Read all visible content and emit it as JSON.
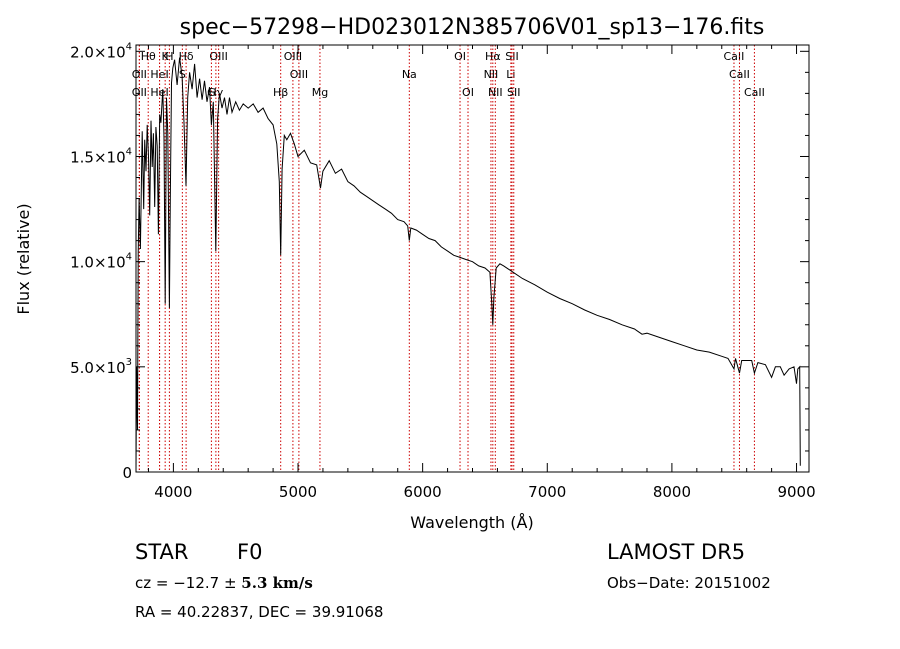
{
  "title": "spec−57298−HD023012N385706V01_sp13−176.fits",
  "footer": {
    "class_label": "STAR",
    "subclass": "F0",
    "survey": "LAMOST DR5",
    "cz_prefix": "cz = −12.7 ± ",
    "cz_value": "5.3 km/s",
    "obs_date": "Obs−Date: 20151002",
    "radec": "RA =  40.22837, DEC =  39.91068"
  },
  "chart_data": {
    "type": "line",
    "title": "spec−57298−HD023012N385706V01_sp13−176.fits",
    "xlabel": "Wavelength (Å)",
    "ylabel": "Flux (relative)",
    "xlim": [
      3700,
      9100
    ],
    "ylim": [
      0,
      20300
    ],
    "x_ticks": [
      "4000",
      "5000",
      "6000",
      "7000",
      "8000",
      "9000"
    ],
    "x_tick_values": [
      4000,
      5000,
      6000,
      7000,
      8000,
      9000
    ],
    "y_tick_values": [
      0,
      5000,
      10000,
      15000,
      20000
    ],
    "y_tick_labels": [
      {
        "mant": "0",
        "exp": ""
      },
      {
        "mant": "5.0×10",
        "exp": "3"
      },
      {
        "mant": "1.0×10",
        "exp": "4"
      },
      {
        "mant": "1.5×10",
        "exp": "4"
      },
      {
        "mant": "2.0×10",
        "exp": "4"
      }
    ],
    "series": [
      {
        "values": [
          [
            3700,
            0
          ],
          [
            3705,
            5000
          ],
          [
            3712,
            2000
          ],
          [
            3718,
            10400
          ],
          [
            3725,
            13000
          ],
          [
            3735,
            10600
          ],
          [
            3750,
            16200
          ],
          [
            3762,
            12500
          ],
          [
            3770,
            15800
          ],
          [
            3780,
            14300
          ],
          [
            3790,
            16500
          ],
          [
            3800,
            15000
          ],
          [
            3810,
            12200
          ],
          [
            3820,
            16700
          ],
          [
            3830,
            14500
          ],
          [
            3840,
            16100
          ],
          [
            3850,
            12600
          ],
          [
            3860,
            16400
          ],
          [
            3870,
            15500
          ],
          [
            3880,
            11300
          ],
          [
            3890,
            17000
          ],
          [
            3900,
            16600
          ],
          [
            3915,
            18200
          ],
          [
            3925,
            15900
          ],
          [
            3934,
            8000
          ],
          [
            3945,
            17800
          ],
          [
            3955,
            16100
          ],
          [
            3968,
            7800
          ],
          [
            3975,
            13000
          ],
          [
            3985,
            18500
          ],
          [
            3995,
            19200
          ],
          [
            4010,
            19600
          ],
          [
            4030,
            18400
          ],
          [
            4050,
            19700
          ],
          [
            4070,
            18800
          ],
          [
            4085,
            16600
          ],
          [
            4101,
            13600
          ],
          [
            4115,
            17800
          ],
          [
            4130,
            19000
          ],
          [
            4150,
            18200
          ],
          [
            4170,
            19400
          ],
          [
            4190,
            17800
          ],
          [
            4210,
            18700
          ],
          [
            4230,
            17700
          ],
          [
            4250,
            18600
          ],
          [
            4270,
            17600
          ],
          [
            4290,
            18300
          ],
          [
            4305,
            16500
          ],
          [
            4320,
            17600
          ],
          [
            4340,
            10500
          ],
          [
            4355,
            16800
          ],
          [
            4370,
            18000
          ],
          [
            4390,
            17300
          ],
          [
            4410,
            17800
          ],
          [
            4430,
            17000
          ],
          [
            4450,
            17800
          ],
          [
            4470,
            17100
          ],
          [
            4500,
            17600
          ],
          [
            4530,
            17200
          ],
          [
            4560,
            17500
          ],
          [
            4600,
            17300
          ],
          [
            4640,
            17500
          ],
          [
            4680,
            17100
          ],
          [
            4720,
            17300
          ],
          [
            4760,
            16800
          ],
          [
            4800,
            16500
          ],
          [
            4830,
            15600
          ],
          [
            4850,
            13800
          ],
          [
            4861,
            10300
          ],
          [
            4872,
            14400
          ],
          [
            4890,
            16000
          ],
          [
            4910,
            15800
          ],
          [
            4940,
            16100
          ],
          [
            4970,
            15600
          ],
          [
            5000,
            15000
          ],
          [
            5050,
            15300
          ],
          [
            5100,
            14700
          ],
          [
            5150,
            14600
          ],
          [
            5180,
            13500
          ],
          [
            5200,
            14300
          ],
          [
            5250,
            14800
          ],
          [
            5300,
            14200
          ],
          [
            5350,
            14400
          ],
          [
            5400,
            13800
          ],
          [
            5450,
            13600
          ],
          [
            5500,
            13300
          ],
          [
            5550,
            13100
          ],
          [
            5600,
            12900
          ],
          [
            5650,
            12700
          ],
          [
            5700,
            12500
          ],
          [
            5750,
            12300
          ],
          [
            5800,
            12000
          ],
          [
            5850,
            11900
          ],
          [
            5880,
            11700
          ],
          [
            5893,
            11000
          ],
          [
            5905,
            11600
          ],
          [
            5950,
            11500
          ],
          [
            6000,
            11300
          ],
          [
            6050,
            11100
          ],
          [
            6100,
            11000
          ],
          [
            6150,
            10700
          ],
          [
            6200,
            10500
          ],
          [
            6250,
            10300
          ],
          [
            6300,
            10200
          ],
          [
            6350,
            10100
          ],
          [
            6400,
            10000
          ],
          [
            6450,
            9800
          ],
          [
            6500,
            9700
          ],
          [
            6540,
            9500
          ],
          [
            6555,
            8000
          ],
          [
            6563,
            7000
          ],
          [
            6572,
            8300
          ],
          [
            6590,
            9700
          ],
          [
            6620,
            9900
          ],
          [
            6650,
            9800
          ],
          [
            6700,
            9600
          ],
          [
            6800,
            9200
          ],
          [
            6900,
            8900
          ],
          [
            7000,
            8550
          ],
          [
            7100,
            8250
          ],
          [
            7200,
            8000
          ],
          [
            7300,
            7700
          ],
          [
            7400,
            7450
          ],
          [
            7500,
            7250
          ],
          [
            7600,
            7000
          ],
          [
            7700,
            6800
          ],
          [
            7760,
            6550
          ],
          [
            7800,
            6600
          ],
          [
            7900,
            6400
          ],
          [
            8000,
            6200
          ],
          [
            8100,
            6000
          ],
          [
            8200,
            5800
          ],
          [
            8300,
            5700
          ],
          [
            8400,
            5500
          ],
          [
            8450,
            5400
          ],
          [
            8498,
            4900
          ],
          [
            8510,
            5400
          ],
          [
            8542,
            4700
          ],
          [
            8560,
            5300
          ],
          [
            8600,
            5300
          ],
          [
            8640,
            5300
          ],
          [
            8662,
            4700
          ],
          [
            8690,
            5200
          ],
          [
            8750,
            5100
          ],
          [
            8800,
            4500
          ],
          [
            8830,
            5000
          ],
          [
            8870,
            5000
          ],
          [
            8900,
            4600
          ],
          [
            8940,
            4900
          ],
          [
            8980,
            5000
          ],
          [
            9000,
            4200
          ],
          [
            9010,
            4900
          ],
          [
            9025,
            5000
          ],
          [
            9030,
            300
          ]
        ]
      }
    ],
    "lines": [
      {
        "name": "Hθ",
        "x": 3798,
        "row": 0
      },
      {
        "name": "K",
        "x": 3934,
        "row": 0
      },
      {
        "name": "H",
        "x": 3968,
        "row": 0
      },
      {
        "name": "Hδ",
        "x": 4102,
        "row": 0
      },
      {
        "name": "OII",
        "x": 3727,
        "row": 1
      },
      {
        "name": "HeI",
        "x": 3889,
        "row": 1
      },
      {
        "name": "S",
        "x": 4072,
        "row": 1
      },
      {
        "name": "OII",
        "x": 3727,
        "row": 2
      },
      {
        "name": "HeI",
        "x": 3889,
        "row": 2
      },
      {
        "name": "OIII",
        "x": 4363,
        "row": 0
      },
      {
        "name": "G",
        "x": 4305,
        "row": 2
      },
      {
        "name": "Hγ",
        "x": 4341,
        "row": 2
      },
      {
        "name": "OIII",
        "x": 4959,
        "row": 0
      },
      {
        "name": "OIII",
        "x": 5007,
        "row": 1
      },
      {
        "name": "Hβ",
        "x": 4861,
        "row": 2
      },
      {
        "name": "Mg",
        "x": 5176,
        "row": 2
      },
      {
        "name": "Na",
        "x": 5893,
        "row": 1
      },
      {
        "name": "OI",
        "x": 6300,
        "row": 0
      },
      {
        "name": "OI",
        "x": 6364,
        "row": 2
      },
      {
        "name": "Hα",
        "x": 6563,
        "row": 0
      },
      {
        "name": "NII",
        "x": 6548,
        "row": 1
      },
      {
        "name": "NII",
        "x": 6583,
        "row": 2
      },
      {
        "name": "SII",
        "x": 6717,
        "row": 0
      },
      {
        "name": "Li",
        "x": 6708,
        "row": 1
      },
      {
        "name": "SII",
        "x": 6731,
        "row": 2
      },
      {
        "name": "CaII",
        "x": 8498,
        "row": 0
      },
      {
        "name": "CaII",
        "x": 8542,
        "row": 1
      },
      {
        "name": "CaII",
        "x": 8662,
        "row": 2
      }
    ]
  }
}
